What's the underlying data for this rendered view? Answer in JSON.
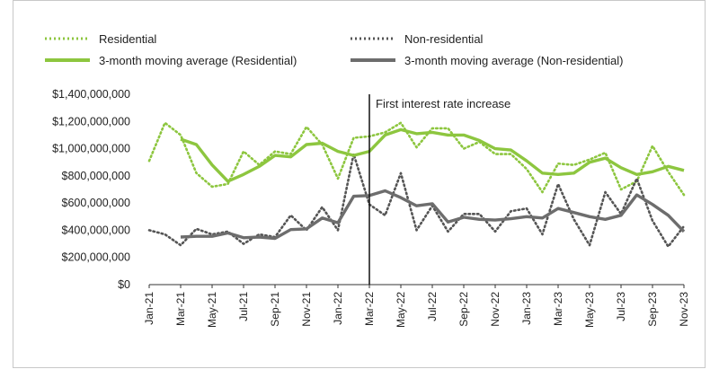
{
  "chart_data": {
    "type": "line",
    "title": "",
    "xlabel": "",
    "ylabel": "",
    "ylim": [
      0,
      1400000000
    ],
    "y_ticks": [
      "$0",
      "$200,000,000",
      "$400,000,000",
      "$600,000,000",
      "$800,000,000",
      "$1,000,000,000",
      "$1,200,000,000",
      "$1,400,000,000"
    ],
    "categories": [
      "Jan-21",
      "Feb-21",
      "Mar-21",
      "Apr-21",
      "May-21",
      "Jun-21",
      "Jul-21",
      "Aug-21",
      "Sep-21",
      "Oct-21",
      "Nov-21",
      "Dec-21",
      "Jan-22",
      "Feb-22",
      "Mar-22",
      "Apr-22",
      "May-22",
      "Jun-22",
      "Jul-22",
      "Aug-22",
      "Sep-22",
      "Oct-22",
      "Nov-22",
      "Dec-22",
      "Jan-23",
      "Feb-23",
      "Mar-23",
      "Apr-23",
      "May-23",
      "Jun-23",
      "Jul-23",
      "Aug-23",
      "Sep-23",
      "Oct-23",
      "Nov-23"
    ],
    "tick_labels": [
      "Jan-21",
      "Mar-21",
      "May-21",
      "Jul-21",
      "Sep-21",
      "Nov-21",
      "Jan-22",
      "Mar-22",
      "May-22",
      "Jul-22",
      "Sep-22",
      "Nov-22",
      "Jan-23",
      "Mar-23",
      "May-23",
      "Jul-23",
      "Sep-23",
      "Nov-23"
    ],
    "series": [
      {
        "name": "Residential",
        "style": "dotted",
        "color": "#8dc63f",
        "values": [
          910000000,
          1190000000,
          1100000000,
          820000000,
          720000000,
          740000000,
          980000000,
          880000000,
          980000000,
          960000000,
          1160000000,
          1030000000,
          780000000,
          1080000000,
          1090000000,
          1120000000,
          1190000000,
          1010000000,
          1150000000,
          1150000000,
          1000000000,
          1050000000,
          960000000,
          960000000,
          850000000,
          680000000,
          890000000,
          880000000,
          920000000,
          970000000,
          700000000,
          760000000,
          1020000000,
          830000000,
          660000000
        ]
      },
      {
        "name": "Non-residential",
        "style": "dotted",
        "color": "#555555",
        "values": [
          400000000,
          370000000,
          290000000,
          410000000,
          370000000,
          390000000,
          300000000,
          370000000,
          350000000,
          510000000,
          400000000,
          570000000,
          400000000,
          960000000,
          590000000,
          510000000,
          820000000,
          400000000,
          580000000,
          390000000,
          520000000,
          520000000,
          390000000,
          540000000,
          560000000,
          370000000,
          740000000,
          480000000,
          290000000,
          680000000,
          520000000,
          780000000,
          470000000,
          280000000,
          430000000
        ]
      },
      {
        "name": "3-month moving average (Residential)",
        "style": "solid",
        "color": "#8dc63f",
        "values": [
          null,
          null,
          1070000000,
          1030000000,
          880000000,
          760000000,
          810000000,
          870000000,
          950000000,
          940000000,
          1030000000,
          1040000000,
          980000000,
          950000000,
          980000000,
          1100000000,
          1140000000,
          1110000000,
          1120000000,
          1100000000,
          1100000000,
          1060000000,
          1000000000,
          990000000,
          910000000,
          820000000,
          810000000,
          820000000,
          900000000,
          930000000,
          860000000,
          810000000,
          830000000,
          870000000,
          840000000
        ]
      },
      {
        "name": "3-month moving average (Non-residential)",
        "style": "solid",
        "color": "#6d6d6d",
        "values": [
          null,
          null,
          350000000,
          355000000,
          355000000,
          380000000,
          345000000,
          350000000,
          340000000,
          405000000,
          410000000,
          490000000,
          455000000,
          650000000,
          655000000,
          690000000,
          640000000,
          580000000,
          595000000,
          460000000,
          495000000,
          480000000,
          475000000,
          485000000,
          500000000,
          490000000,
          560000000,
          530000000,
          500000000,
          480000000,
          510000000,
          660000000,
          590000000,
          510000000,
          390000000
        ]
      }
    ],
    "annotation": {
      "label": "First interest rate increase",
      "category": "Mar-22"
    },
    "grid": false,
    "legend_position": "top"
  }
}
